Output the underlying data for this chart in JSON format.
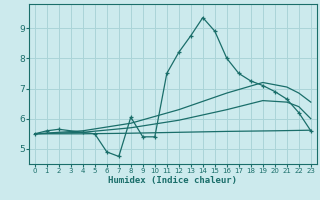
{
  "xlabel": "Humidex (Indice chaleur)",
  "bg_color": "#cceaed",
  "grid_color": "#aad4d8",
  "line_color": "#1a6e6a",
  "xlim": [
    -0.5,
    23.5
  ],
  "ylim": [
    4.5,
    9.8
  ],
  "xticks": [
    0,
    1,
    2,
    3,
    4,
    5,
    6,
    7,
    8,
    9,
    10,
    11,
    12,
    13,
    14,
    15,
    16,
    17,
    18,
    19,
    20,
    21,
    22,
    23
  ],
  "yticks": [
    5,
    6,
    7,
    8,
    9
  ],
  "main_x": [
    0,
    1,
    2,
    4,
    5,
    6,
    7,
    8,
    9,
    10,
    11,
    12,
    13,
    14,
    15,
    16,
    17,
    18,
    19,
    20,
    21,
    22,
    23
  ],
  "main_y": [
    5.5,
    5.6,
    5.65,
    5.55,
    5.5,
    4.9,
    4.75,
    6.05,
    5.4,
    5.4,
    7.5,
    8.2,
    8.75,
    9.35,
    8.9,
    8.0,
    7.5,
    7.25,
    7.1,
    6.9,
    6.65,
    6.2,
    5.6
  ],
  "upper_x": [
    0,
    4,
    8,
    12,
    16,
    19,
    21,
    22,
    23
  ],
  "upper_y": [
    5.5,
    5.6,
    5.85,
    6.3,
    6.85,
    7.2,
    7.05,
    6.85,
    6.55
  ],
  "lower_x": [
    0,
    4,
    8,
    12,
    16,
    20,
    23
  ],
  "lower_y": [
    5.5,
    5.5,
    5.52,
    5.55,
    5.58,
    5.6,
    5.62
  ],
  "mid_x": [
    0,
    4,
    8,
    12,
    16,
    19,
    21,
    22,
    23
  ],
  "mid_y": [
    5.5,
    5.55,
    5.7,
    5.95,
    6.3,
    6.6,
    6.55,
    6.4,
    6.0
  ]
}
